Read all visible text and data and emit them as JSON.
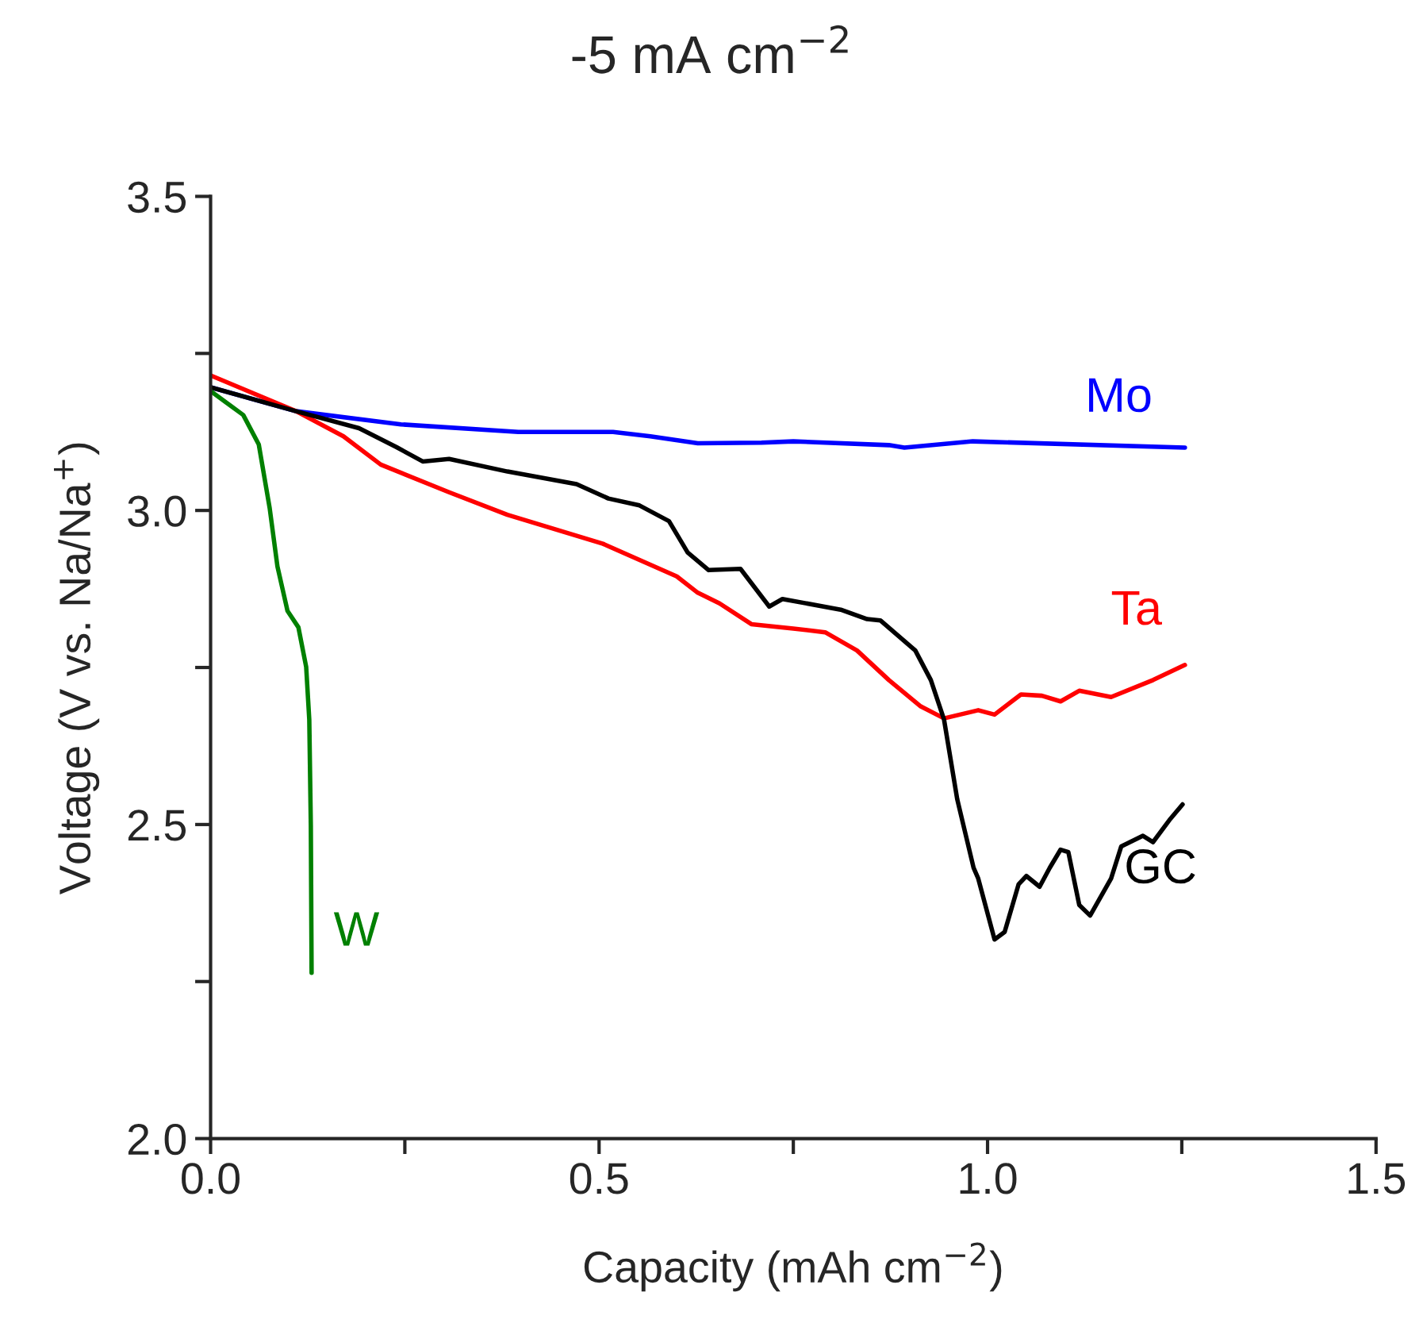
{
  "chart_data": {
    "type": "line",
    "title": "-5 mA cm$^{−2}$",
    "xlabel": "Capacity (mAh cm$^{−2}$)",
    "ylabel": "Voltage (V vs. Na/Na$^{+}$)",
    "xlim": [
      0,
      1.5
    ],
    "ylim": [
      2.0,
      3.5
    ],
    "xticks": [
      {
        "value": 0,
        "label": "0.0"
      },
      {
        "value": 0.25,
        "label": null
      },
      0.5,
      {
        "value": 0.75,
        "label": null
      },
      {
        "value": 1,
        "label": "1.0"
      },
      {
        "value": 1.25,
        "label": null
      },
      1.5
    ],
    "yticks": [
      {
        "value": 2,
        "label": "2.0"
      },
      {
        "value": 2.25,
        "label": null
      },
      2.5,
      {
        "value": 2.75,
        "label": null
      },
      {
        "value": 3,
        "label": "3.0"
      },
      {
        "value": 3.25,
        "label": null
      },
      3.5
    ],
    "grid": false,
    "legend": false,
    "line_style": "solid",
    "marker": "none",
    "series": [
      {
        "name": "Mo",
        "color": "#0000ff",
        "x": [
          0,
          0.11,
          0.245,
          0.396,
          0.518,
          0.566,
          0.627,
          0.709,
          0.75,
          0.873,
          0.893,
          0.981,
          1.254
        ],
        "values": [
          3.196,
          3.158,
          3.137,
          3.125,
          3.125,
          3.118,
          3.107,
          3.108,
          3.11,
          3.104,
          3.1,
          3.11,
          3.1
        ]
      },
      {
        "name": "Ta",
        "color": "#ff0000",
        "x": [
          0,
          0.11,
          0.171,
          0.219,
          0.307,
          0.382,
          0.505,
          0.6,
          0.627,
          0.655,
          0.696,
          0.75,
          0.791,
          0.832,
          0.873,
          0.914,
          0.944,
          0.988,
          1.009,
          1.043,
          1.07,
          1.094,
          1.118,
          1.159,
          1.213,
          1.254
        ],
        "values": [
          3.215,
          3.158,
          3.118,
          3.073,
          3.029,
          2.993,
          2.947,
          2.895,
          2.869,
          2.852,
          2.819,
          2.812,
          2.806,
          2.777,
          2.73,
          2.688,
          2.669,
          2.682,
          2.675,
          2.707,
          2.705,
          2.696,
          2.713,
          2.703,
          2.73,
          2.754
        ]
      },
      {
        "name": "GC",
        "color": "#000000",
        "x": [
          0,
          0.11,
          0.191,
          0.239,
          0.273,
          0.307,
          0.382,
          0.471,
          0.512,
          0.552,
          0.59,
          0.614,
          0.641,
          0.682,
          0.719,
          0.736,
          0.811,
          0.845,
          0.862,
          0.907,
          0.927,
          0.944,
          0.961,
          0.982,
          0.988,
          1.009,
          1.022,
          1.04,
          1.05,
          1.067,
          1.08,
          1.094,
          1.104,
          1.118,
          1.132,
          1.159,
          1.172,
          1.2,
          1.213,
          1.234,
          1.251
        ],
        "values": [
          3.196,
          3.158,
          3.131,
          3.101,
          3.078,
          3.082,
          3.062,
          3.042,
          3.019,
          3.008,
          2.983,
          2.933,
          2.905,
          2.907,
          2.847,
          2.859,
          2.842,
          2.827,
          2.825,
          2.777,
          2.73,
          2.667,
          2.54,
          2.431,
          2.414,
          2.317,
          2.329,
          2.405,
          2.418,
          2.401,
          2.431,
          2.46,
          2.456,
          2.372,
          2.355,
          2.414,
          2.465,
          2.482,
          2.472,
          2.507,
          2.532
        ]
      },
      {
        "name": "W",
        "color": "#008000",
        "x": [
          0,
          0.042,
          0.062,
          0.076,
          0.086,
          0.099,
          0.113,
          0.123,
          0.127,
          0.129,
          0.13
        ],
        "values": [
          3.19,
          3.152,
          3.105,
          3.004,
          2.911,
          2.84,
          2.814,
          2.751,
          2.667,
          2.498,
          2.264
        ]
      }
    ]
  }
}
